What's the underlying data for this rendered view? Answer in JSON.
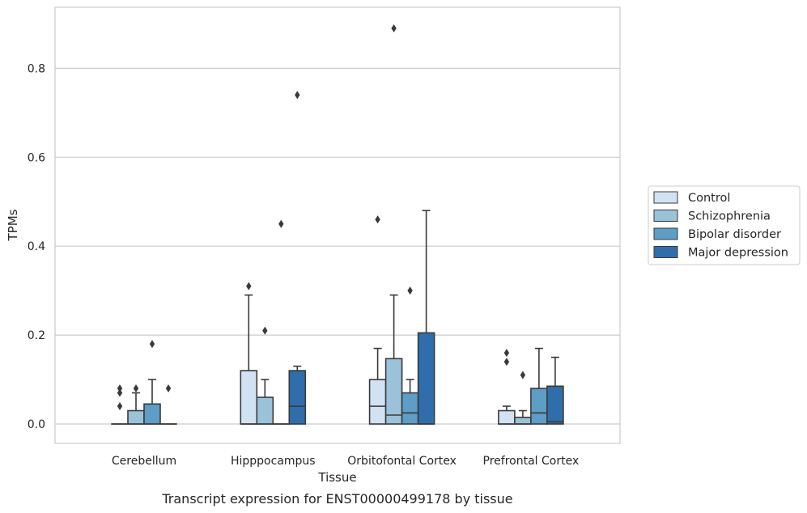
{
  "chart_data": {
    "type": "box",
    "xlabel": "Tissue",
    "ylabel": "TPMs",
    "caption": "Transcript expression for ENST00000499178 by tissue",
    "ylim": [
      -0.043,
      0.939
    ],
    "yticks": [
      "0.0",
      "0.2",
      "0.4",
      "0.6",
      "0.8"
    ],
    "ytick_values": [
      0.0,
      0.2,
      0.4,
      0.6,
      0.8
    ],
    "grid": true,
    "legend_position": "right",
    "categories": [
      "Cerebellum",
      "Hipppocampus",
      "Orbitofontal Cortex",
      "Prefrontal Cortex"
    ],
    "series": [
      {
        "name": "Control",
        "color": "#d1e2f3",
        "boxes": [
          {
            "q1": 0.0,
            "median": 0.0,
            "q3": 0.0,
            "whisker_low": 0.0,
            "whisker_high": 0.0,
            "outliers": [
              0.04,
              0.07,
              0.08
            ]
          },
          {
            "q1": 0.0,
            "median": 0.0,
            "q3": 0.12,
            "whisker_low": 0.0,
            "whisker_high": 0.29,
            "outliers": [
              0.31
            ]
          },
          {
            "q1": 0.0,
            "median": 0.04,
            "q3": 0.1,
            "whisker_low": 0.0,
            "whisker_high": 0.17,
            "outliers": [
              0.46
            ]
          },
          {
            "q1": 0.0,
            "median": 0.0,
            "q3": 0.03,
            "whisker_low": 0.0,
            "whisker_high": 0.04,
            "outliers": [
              0.14,
              0.16
            ]
          }
        ]
      },
      {
        "name": "Schizophrenia",
        "color": "#9ac2d9",
        "boxes": [
          {
            "q1": 0.0,
            "median": 0.0,
            "q3": 0.03,
            "whisker_low": 0.0,
            "whisker_high": 0.07,
            "outliers": [
              0.08
            ]
          },
          {
            "q1": 0.0,
            "median": 0.0,
            "q3": 0.06,
            "whisker_low": 0.0,
            "whisker_high": 0.1,
            "outliers": [
              0.21
            ]
          },
          {
            "q1": 0.0,
            "median": 0.02,
            "q3": 0.147,
            "whisker_low": 0.0,
            "whisker_high": 0.29,
            "outliers": [
              0.89
            ]
          },
          {
            "q1": 0.0,
            "median": 0.0,
            "q3": 0.015,
            "whisker_low": 0.0,
            "whisker_high": 0.03,
            "outliers": [
              0.11
            ]
          }
        ]
      },
      {
        "name": "Bipolar disorder",
        "color": "#5d9dc6",
        "boxes": [
          {
            "q1": 0.0,
            "median": 0.0,
            "q3": 0.045,
            "whisker_low": 0.0,
            "whisker_high": 0.1,
            "outliers": [
              0.18
            ]
          },
          {
            "q1": 0.0,
            "median": 0.0,
            "q3": 0.0,
            "whisker_low": 0.0,
            "whisker_high": 0.0,
            "outliers": [
              0.45
            ]
          },
          {
            "q1": 0.0,
            "median": 0.025,
            "q3": 0.07,
            "whisker_low": 0.0,
            "whisker_high": 0.1,
            "outliers": [
              0.3
            ]
          },
          {
            "q1": 0.0,
            "median": 0.025,
            "q3": 0.08,
            "whisker_low": 0.0,
            "whisker_high": 0.17,
            "outliers": []
          }
        ]
      },
      {
        "name": "Major depression",
        "color": "#2f6eab",
        "boxes": [
          {
            "q1": 0.0,
            "median": 0.0,
            "q3": 0.0,
            "whisker_low": 0.0,
            "whisker_high": 0.0,
            "outliers": [
              0.08
            ]
          },
          {
            "q1": 0.0,
            "median": 0.04,
            "q3": 0.12,
            "whisker_low": 0.0,
            "whisker_high": 0.13,
            "outliers": [
              0.74
            ]
          },
          {
            "q1": 0.0,
            "median": 0.0,
            "q3": 0.205,
            "whisker_low": 0.0,
            "whisker_high": 0.48,
            "outliers": []
          },
          {
            "q1": 0.0,
            "median": 0.005,
            "q3": 0.085,
            "whisker_low": 0.0,
            "whisker_high": 0.15,
            "outliers": []
          }
        ]
      }
    ]
  }
}
